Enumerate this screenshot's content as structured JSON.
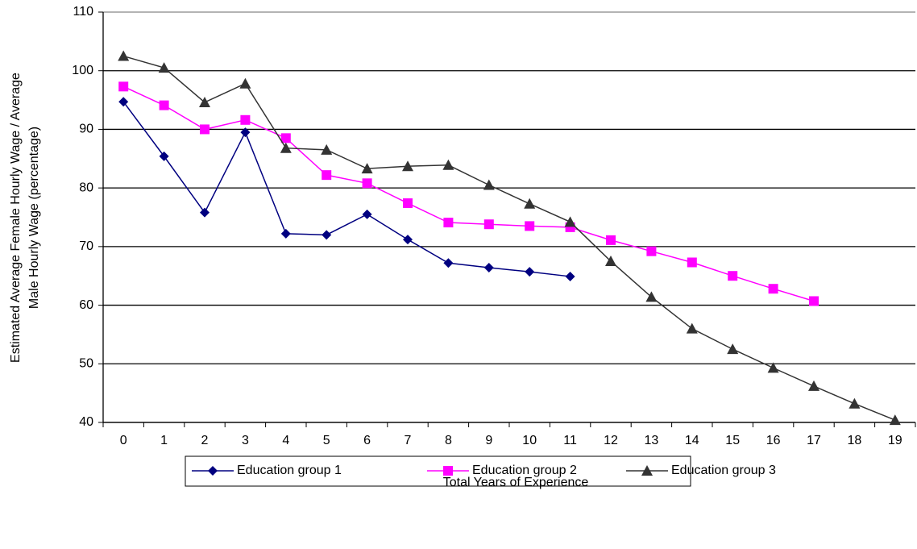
{
  "chart_data": {
    "type": "line",
    "ylabel": [
      "Estimated Average Female Hourly Wage / Average",
      "Male Hourly Wage (percentage)"
    ],
    "xlabel": "Total Years of Experience",
    "categories": [
      "0",
      "1",
      "2",
      "3",
      "4",
      "5",
      "6",
      "7",
      "8",
      "9",
      "10",
      "11",
      "12",
      "13",
      "14",
      "15",
      "16",
      "17",
      "18",
      "19"
    ],
    "series": [
      {
        "name": "Education group 1",
        "color": "#000080",
        "marker": "diamond",
        "values": [
          94.7,
          85.4,
          75.8,
          89.5,
          72.2,
          72.0,
          75.5,
          71.2,
          67.2,
          66.4,
          65.7,
          64.9,
          null,
          null,
          null,
          null,
          null,
          null,
          null,
          null
        ]
      },
      {
        "name": "Education group 2",
        "color": "#ff00ff",
        "marker": "square",
        "values": [
          97.3,
          94.1,
          90.0,
          91.6,
          88.5,
          82.2,
          80.8,
          77.4,
          74.1,
          73.8,
          73.5,
          73.3,
          71.1,
          69.2,
          67.3,
          65.0,
          62.8,
          60.7,
          null,
          null
        ]
      },
      {
        "name": "Education group 3",
        "color": "#333333",
        "marker": "triangle",
        "values": [
          102.5,
          100.5,
          94.6,
          97.8,
          86.8,
          86.5,
          83.3,
          83.7,
          83.9,
          80.5,
          77.3,
          74.2,
          67.5,
          61.4,
          56.0,
          52.5,
          49.3,
          46.2,
          43.2,
          40.4
        ]
      }
    ],
    "ylim": [
      40,
      110
    ],
    "yticks": [
      40,
      50,
      60,
      70,
      80,
      90,
      100,
      110
    ],
    "grid": true,
    "legend": "bottom"
  }
}
